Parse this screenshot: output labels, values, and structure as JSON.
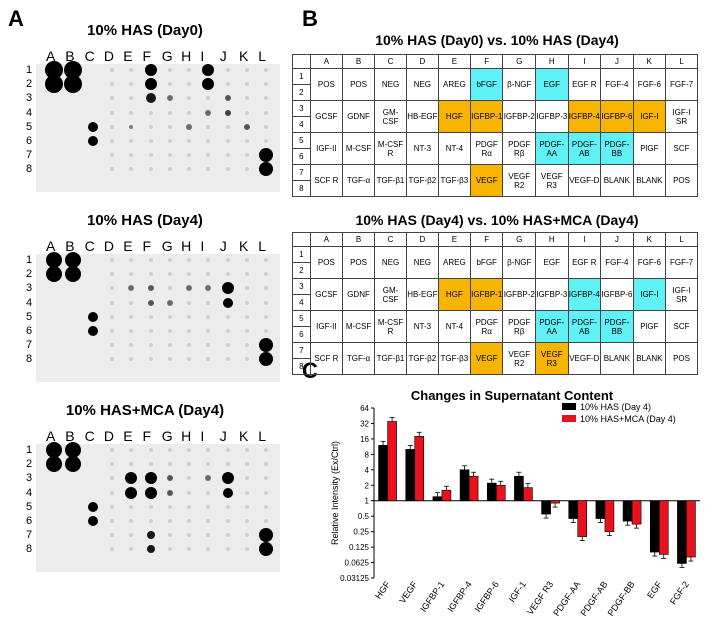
{
  "panels": {
    "a": "A",
    "b": "B",
    "c": "C"
  },
  "blots": [
    {
      "title": "10% HAS (Day0)"
    },
    {
      "title": "10% HAS (Day4)"
    },
    {
      "title": "10% HAS+MCA (Day4)"
    }
  ],
  "blot_cols": [
    "A",
    "B",
    "C",
    "D",
    "E",
    "F",
    "G",
    "H",
    "I",
    "J",
    "K",
    "L"
  ],
  "blot_rows": [
    "1",
    "2",
    "3",
    "4",
    "5",
    "6",
    "7",
    "8"
  ],
  "tables": [
    {
      "title": "10% HAS (Day0) vs. 10% HAS (Day4)"
    },
    {
      "title": "10% HAS (Day4) vs. 10% HAS+MCA (Day4)"
    }
  ],
  "array_cols": [
    "A",
    "B",
    "C",
    "D",
    "E",
    "F",
    "G",
    "H",
    "I",
    "J",
    "K",
    "L"
  ],
  "array_rows": [
    [
      "1",
      "2"
    ],
    [
      "3",
      "4"
    ],
    [
      "5",
      "6"
    ],
    [
      "7",
      "8"
    ]
  ],
  "array_cells": [
    [
      "POS",
      "POS",
      "NEG",
      "NEG",
      "AREG",
      "bFGF",
      "β-NGF",
      "EGF",
      "EGF R",
      "FGF-4",
      "FGF-6",
      "FGF-7"
    ],
    [
      "GCSF",
      "GDNF",
      "GM-CSF",
      "HB-EGF",
      "HGF",
      "IGFBP-1",
      "IGFBP-2",
      "IGFBP-3",
      "IGFBP-4",
      "IGFBP-6",
      "IGF-I",
      "IGF-I SR"
    ],
    [
      "IGF-II",
      "M-CSF",
      "M-CSF R",
      "NT-3",
      "NT-4",
      "PDGF Rα",
      "PDGF Rβ",
      "PDGF-AA",
      "PDGF-AB",
      "PDGF-BB",
      "PlGF",
      "SCF"
    ],
    [
      "SCF R",
      "TGF-α",
      "TGF-β1",
      "TGF-β2",
      "TGF-β3",
      "VEGF",
      "VEGF R2",
      "VEGF R3",
      "VEGF-D",
      "BLANK",
      "BLANK",
      "POS"
    ]
  ],
  "highlight_colors": {
    "orange": "#f7b400",
    "cyan": "#5ff1f5"
  },
  "table1_highlights": {
    "0,5": "c",
    "0,7": "c",
    "1,4": "o",
    "1,5": "o",
    "1,8": "o",
    "1,9": "o",
    "1,10": "o",
    "2,7": "c",
    "2,8": "c",
    "2,9": "c",
    "3,5": "o"
  },
  "table2_highlights": {
    "1,4": "o",
    "1,5": "o",
    "1,8": "c",
    "1,10": "c",
    "2,7": "c",
    "2,8": "c",
    "2,9": "c",
    "3,5": "o",
    "3,7": "o"
  },
  "chart_data": {
    "type": "bar",
    "title": "Changes in Supernatant Content",
    "ylabel": "Relative Intensity (Ex/Ctrl)",
    "yscale": "log2",
    "ylim": [
      0.03125,
      64
    ],
    "yticks": [
      "64",
      "32",
      "16",
      "8",
      "4",
      "2",
      "1",
      "0.5",
      "0.25",
      "0.125",
      "0.0625",
      "0.03125"
    ],
    "categories": [
      "HGF",
      "VEGF",
      "IGFBP-1",
      "IGFBP-4",
      "IGFBP-6",
      "IGF-1",
      "VEGF R3",
      "PDGF-AA",
      "PDGF-AB",
      "PDGF-BB",
      "EGF",
      "FGF-2"
    ],
    "legend_position": "top-right",
    "series": [
      {
        "name": "10% HAS (Day 4)",
        "color": "#000000",
        "values": [
          12,
          10,
          1.2,
          4,
          2.2,
          3,
          0.55,
          0.45,
          0.45,
          0.4,
          0.1,
          0.06
        ]
      },
      {
        "name": "10% HAS+MCA (Day 4)",
        "color": "#e8121c",
        "values": [
          35,
          18,
          1.6,
          3,
          2,
          1.8,
          0.9,
          0.2,
          0.25,
          0.35,
          0.09,
          0.08
        ]
      }
    ]
  }
}
